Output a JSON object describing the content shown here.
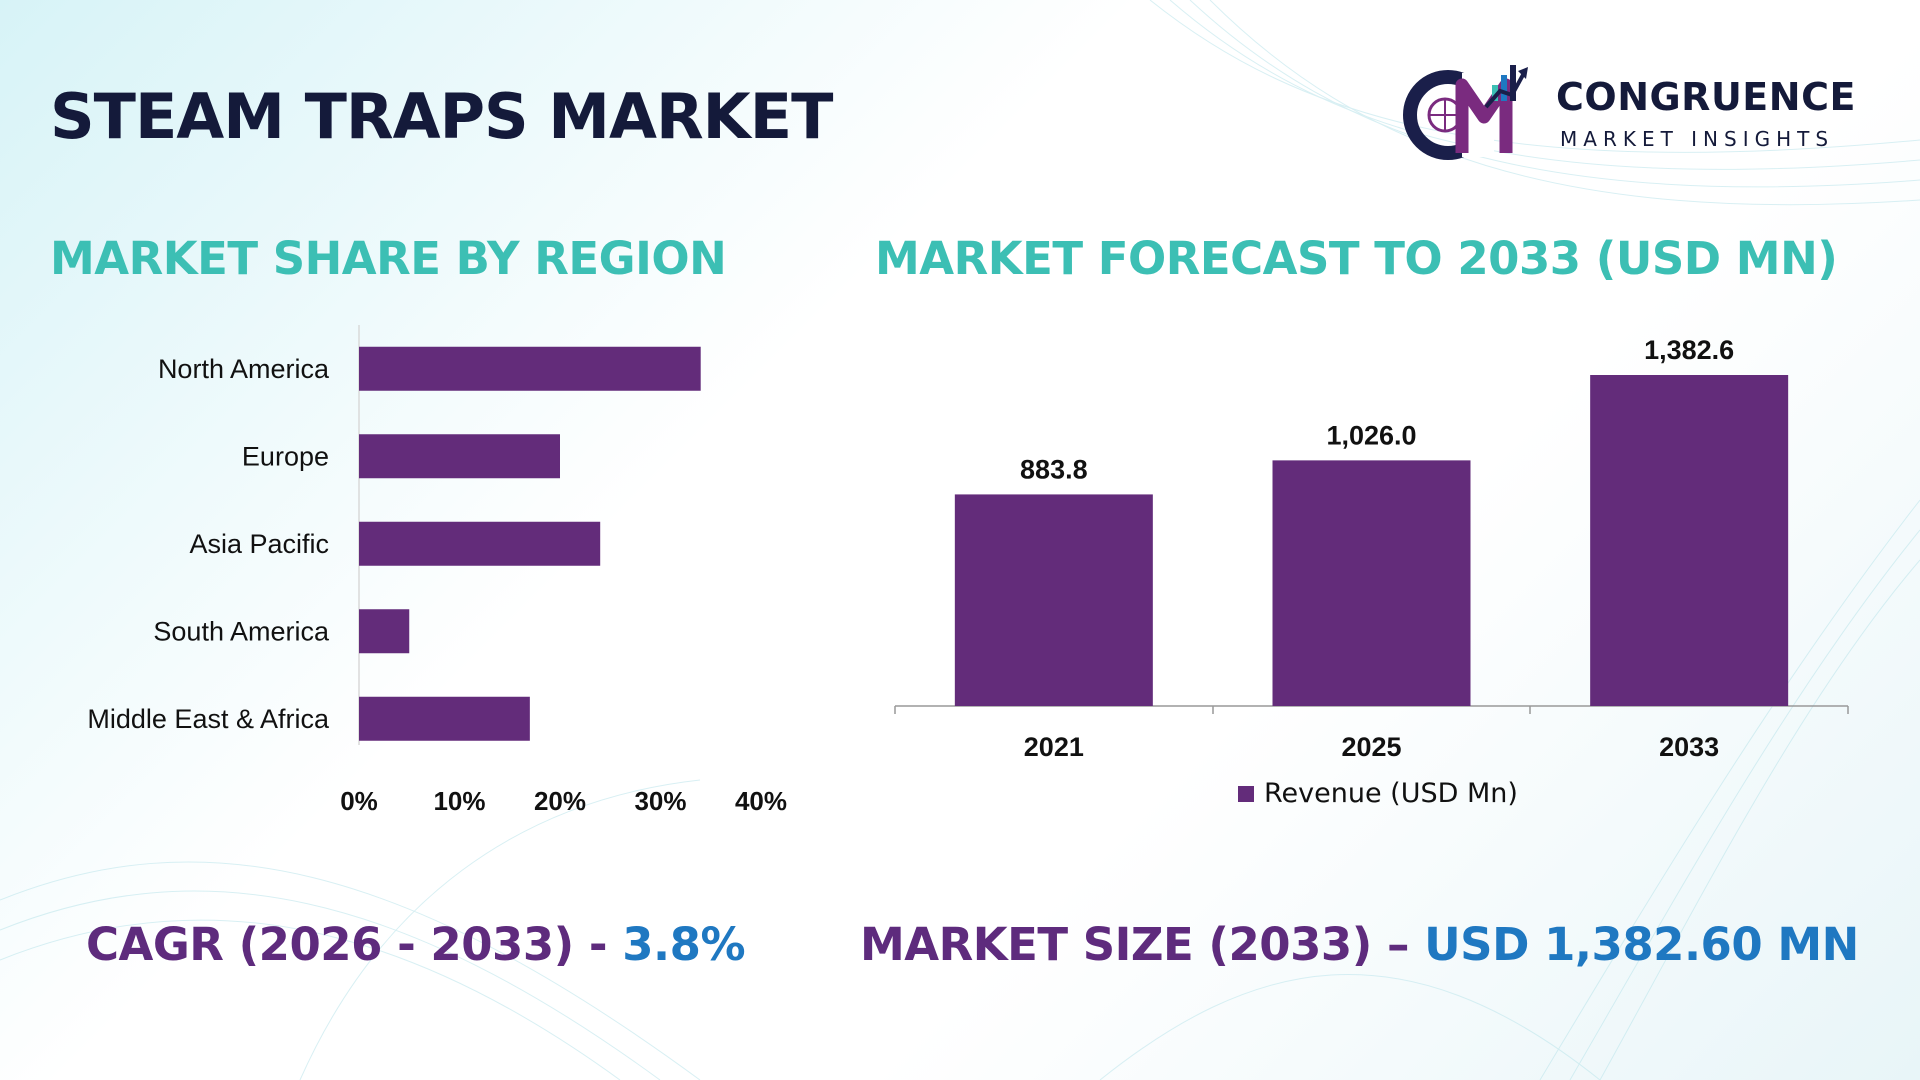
{
  "title": "STEAM TRAPS MARKET",
  "logo": {
    "line1": "CONGRUENCE",
    "line2": "MARKET INSIGHTS",
    "colors": {
      "navy": "#1a1f4a",
      "purple": "#7a2b7f",
      "teal": "#3cbfb4",
      "blue": "#1f78c1"
    }
  },
  "sections": {
    "left_title": "MARKET SHARE BY REGION",
    "right_title": "MARKET FORECAST TO 2033 (USD MN)"
  },
  "stats": {
    "cagr_label": "CAGR (2026 - 2033) - ",
    "cagr_value": "3.8%",
    "size_label": "MARKET SIZE (2033) – ",
    "size_value": "USD 1,382.60 MN"
  },
  "colors": {
    "bar": "#632c7a",
    "section_title": "#3cbfb4",
    "stat_label": "#5e2b7d",
    "stat_value": "#1f78c1",
    "title": "#141a3a"
  },
  "chart_data": [
    {
      "type": "bar",
      "orientation": "horizontal",
      "title": "MARKET SHARE BY REGION",
      "categories": [
        "North America",
        "Europe",
        "Asia Pacific",
        "South America",
        "Middle East & Africa"
      ],
      "values": [
        34,
        20,
        24,
        5,
        17
      ],
      "xlim": [
        0,
        40
      ],
      "xticks": [
        "0%",
        "10%",
        "20%",
        "30%",
        "40%"
      ],
      "grid": false
    },
    {
      "type": "bar",
      "orientation": "vertical",
      "title": "MARKET FORECAST TO 2033 (USD MN)",
      "categories": [
        "2021",
        "2025",
        "2033"
      ],
      "series": [
        {
          "name": "Revenue (USD Mn)",
          "values": [
            883.8,
            1026.0,
            1382.6
          ]
        }
      ],
      "data_labels": [
        "883.8",
        "1,026.0",
        "1,382.6"
      ],
      "ylim": [
        0,
        1500
      ],
      "legend": "bottom",
      "grid": false
    }
  ]
}
